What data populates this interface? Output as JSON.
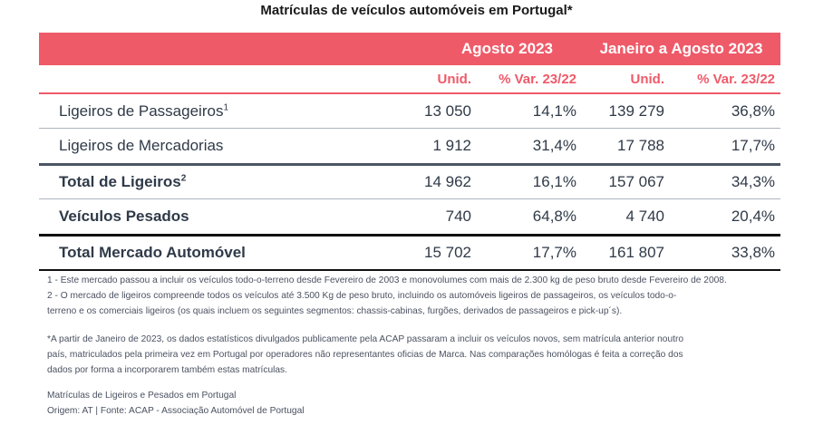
{
  "title": "Matrículas de veículos automóveis em Portugal*",
  "periods": [
    "Agosto 2023",
    "Janeiro a Agosto 2023"
  ],
  "columns": [
    "Unid.",
    "% Var. 23/22",
    "Unid.",
    "% Var. 23/22"
  ],
  "rows": [
    {
      "label": "Ligeiros de Passageiros",
      "sup": "1",
      "values": [
        "13 050",
        "14,1%",
        "139 279",
        "36,8%"
      ]
    },
    {
      "label": "Ligeiros de Mercadorias",
      "sup": "",
      "values": [
        "1 912",
        "31,4%",
        "17 788",
        "17,7%"
      ]
    },
    {
      "label": "Total de Ligeiros",
      "sup": "2",
      "values": [
        "14 962",
        "16,1%",
        "157 067",
        "34,3%"
      ]
    },
    {
      "label": "Veículos Pesados",
      "sup": "",
      "values": [
        "740",
        "64,8%",
        "4 740",
        "20,4%"
      ]
    },
    {
      "label": "Total Mercado Automóvel",
      "sup": "",
      "values": [
        "15 702",
        "17,7%",
        "161 807",
        "33,8%"
      ]
    }
  ],
  "notes": {
    "note1": "1 - Este mercado passou a incluir os veículos todo-o-terreno desde Fevereiro de 2003 e monovolumes com mais de 2.300 kg de peso bruto desde Fevereiro de 2008.",
    "note2_line1": "2 - O mercado de ligeiros compreende todos os veículos até 3.500 Kg de peso bruto, incluindo os automóveis ligeiros de passageiros, os veículos todo-o-",
    "note2_line2": "terreno e os comerciais ligeiros (os quais incluem os seguintes segmentos: chassis-cabinas, furgões, derivados de passageiros e pick-up´s).",
    "asterisk_line1": "*A partir de Janeiro de 2023, os dados estatísticos divulgados publicamente pela ACAP passaram a incluir os veículos novos, sem matrícula anterior noutro",
    "asterisk_line2": "país, matriculados pela primeira vez em Portugal por operadores não representantes oficias de Marca. Nas comparações homólogas é feita a correção dos",
    "asterisk_line3": "dados por forma a incorporarem também estas matrículas.",
    "caption": "Matrículas de Ligeiros e Pesados em Portugal",
    "source": "Origem: AT | Fonte: ACAP - Associação Automóvel de Portugal"
  }
}
